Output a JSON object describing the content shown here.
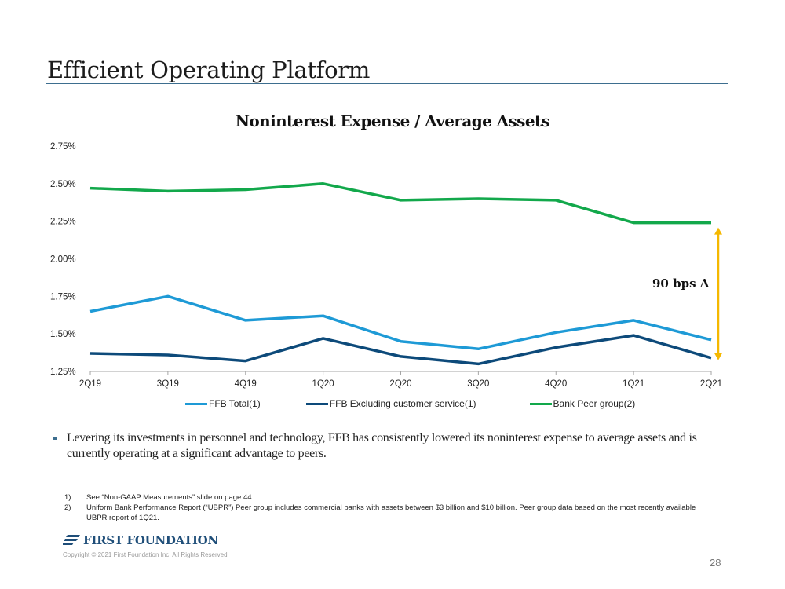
{
  "page": {
    "title": "Efficient Operating Platform",
    "page_number": "28",
    "bullet": "Levering its investments in personnel and technology, FFB has consistently lowered its noninterest expense to average assets and is currently operating at a significant advantage to peers.",
    "footnotes": [
      {
        "num": "1)",
        "text": "See “Non-GAAP Measurements” slide on page 44."
      },
      {
        "num": "2)",
        "text": "Uniform Bank Performance Report (“UBPR”) Peer group includes commercial banks with assets between $3 billion and $10 billion. Peer group data based on the most recently available UBPR report of 1Q21."
      }
    ],
    "logo_text": "FIRST FOUNDATION",
    "copyright": "Copyright © 2021 First Foundation Inc. All Rights Reserved",
    "colors": {
      "brand": "#1f4e79",
      "accent_arrow": "#f5b800"
    }
  },
  "chart_data": {
    "type": "line",
    "title": "Noninterest Expense / Average Assets",
    "xlabel": "",
    "ylabel": "",
    "categories": [
      "2Q19",
      "3Q19",
      "4Q19",
      "1Q20",
      "2Q20",
      "3Q20",
      "4Q20",
      "1Q21",
      "2Q21"
    ],
    "ylim": [
      1.25,
      2.75
    ],
    "yticks": [
      1.25,
      1.5,
      1.75,
      2.0,
      2.25,
      2.5,
      2.75
    ],
    "ytick_labels": [
      "1.25%",
      "1.50%",
      "1.75%",
      "2.00%",
      "2.25%",
      "2.50%",
      "2.75%"
    ],
    "grid": false,
    "legend_position": "bottom",
    "series": [
      {
        "name": "FFB Total(1)",
        "color": "#1e9ad6",
        "values": [
          1.65,
          1.75,
          1.59,
          1.62,
          1.45,
          1.4,
          1.51,
          1.59,
          1.46
        ]
      },
      {
        "name": "FFB Excluding customer service(1)",
        "color": "#0d4a7a",
        "values": [
          1.37,
          1.36,
          1.32,
          1.47,
          1.35,
          1.3,
          1.41,
          1.49,
          1.34
        ]
      },
      {
        "name": "Bank Peer group(2)",
        "color": "#12a84b",
        "values": [
          2.47,
          2.45,
          2.46,
          2.5,
          2.39,
          2.4,
          2.39,
          2.24,
          2.24
        ]
      }
    ],
    "annotation": {
      "text": "90 bps Δ",
      "from_series": "Bank Peer group(2)",
      "to_series": "FFB Excluding customer service(1)",
      "category": "2Q21"
    }
  }
}
